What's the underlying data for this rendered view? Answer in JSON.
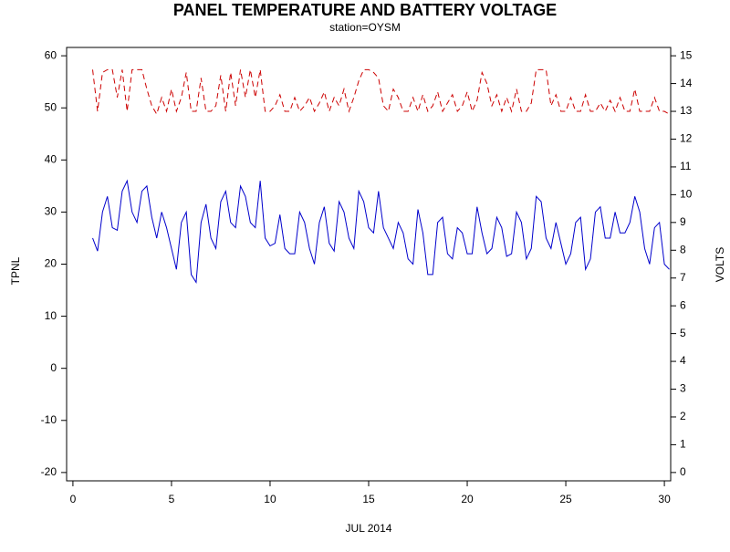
{
  "chart_data": {
    "type": "line",
    "title": "PANEL TEMPERATURE AND BATTERY VOLTAGE",
    "subtitle": "station=OYSM",
    "x_label": "JUL 2014",
    "y_label": "TPNL",
    "y2_label": "VOLTS",
    "xlim": [
      -0.32,
      30.32
    ],
    "xticks": [
      0,
      5,
      10,
      15,
      20,
      25,
      30
    ],
    "ylim": [
      -21.6,
      61.6
    ],
    "yticks": [
      -20,
      -10,
      0,
      10,
      20,
      30,
      40,
      50,
      60
    ],
    "y2lim": [
      -0.3,
      15.3
    ],
    "y2ticks": [
      0,
      1,
      2,
      3,
      4,
      5,
      6,
      7,
      8,
      9,
      10,
      11,
      12,
      13,
      14,
      15
    ],
    "x": [
      1.0,
      1.25,
      1.5,
      1.75,
      2.0,
      2.25,
      2.5,
      2.75,
      3.0,
      3.25,
      3.5,
      3.75,
      4.0,
      4.25,
      4.5,
      4.75,
      5.0,
      5.25,
      5.5,
      5.75,
      6.0,
      6.25,
      6.5,
      6.75,
      7.0,
      7.25,
      7.5,
      7.75,
      8.0,
      8.25,
      8.5,
      8.75,
      9.0,
      9.25,
      9.5,
      9.75,
      10.0,
      10.25,
      10.5,
      10.75,
      11.0,
      11.25,
      11.5,
      11.75,
      12.0,
      12.25,
      12.5,
      12.75,
      13.0,
      13.25,
      13.5,
      13.75,
      14.0,
      14.25,
      14.5,
      14.75,
      15.0,
      15.25,
      15.5,
      15.75,
      16.0,
      16.25,
      16.5,
      16.75,
      17.0,
      17.25,
      17.5,
      17.75,
      18.0,
      18.25,
      18.5,
      18.75,
      19.0,
      19.25,
      19.5,
      19.75,
      20.0,
      20.25,
      20.5,
      20.75,
      21.0,
      21.25,
      21.5,
      21.75,
      22.0,
      22.25,
      22.5,
      22.75,
      23.0,
      23.25,
      23.5,
      23.75,
      24.0,
      24.25,
      24.5,
      24.75,
      25.0,
      25.25,
      25.5,
      25.75,
      26.0,
      26.25,
      26.5,
      26.75,
      27.0,
      27.25,
      27.5,
      27.75,
      28.0,
      28.25,
      28.5,
      28.75,
      29.0,
      29.25,
      29.5,
      29.75,
      30.0,
      30.25
    ],
    "series": [
      {
        "name": "TPNL",
        "color": "#0000cc",
        "dashed": false,
        "values": [
          25,
          22.5,
          30,
          33,
          27,
          26.5,
          34,
          36,
          30,
          28,
          34,
          35,
          29,
          25,
          30,
          27,
          23,
          19,
          28,
          30,
          18,
          16.5,
          28,
          31.5,
          25,
          23,
          32,
          34,
          28,
          27,
          35,
          33,
          28,
          27,
          36,
          25,
          23.5,
          24,
          29.5,
          23,
          22,
          22,
          30,
          28,
          23,
          20,
          28,
          31,
          24,
          22.5,
          32,
          30,
          25,
          23,
          34,
          32,
          27,
          26,
          34,
          27,
          25,
          23,
          28,
          26,
          21,
          20,
          30.5,
          26,
          18,
          18,
          28,
          29,
          22,
          21,
          27,
          26,
          22,
          22,
          31,
          26,
          22,
          23,
          29,
          27,
          21.5,
          22,
          30,
          28,
          21,
          23,
          33,
          32,
          25,
          23,
          28,
          24,
          20,
          22,
          28,
          29,
          19,
          21,
          30,
          31,
          25,
          25,
          30,
          26,
          26,
          28,
          33,
          30,
          23,
          20,
          27,
          28,
          20,
          19
        ]
      },
      {
        "name": "VOLTS",
        "color": "#cc0000",
        "dashed": true,
        "axis": "y2",
        "values": [
          14.5,
          13.0,
          14.4,
          14.5,
          14.5,
          13.5,
          14.5,
          13.0,
          14.5,
          14.5,
          14.5,
          13.8,
          13.2,
          12.9,
          13.5,
          13.0,
          13.8,
          13.0,
          13.5,
          14.4,
          13.0,
          13.0,
          14.2,
          13.0,
          13.0,
          13.2,
          14.3,
          13.0,
          14.4,
          13.2,
          14.5,
          13.5,
          14.5,
          13.5,
          14.5,
          13.0,
          13.0,
          13.2,
          13.6,
          13.0,
          13.0,
          13.5,
          13.0,
          13.2,
          13.5,
          13.0,
          13.3,
          13.7,
          13.0,
          13.5,
          13.2,
          13.8,
          13.0,
          13.5,
          14.1,
          14.5,
          14.5,
          14.4,
          14.2,
          13.2,
          13.0,
          13.8,
          13.5,
          13.0,
          13.0,
          13.5,
          13.0,
          13.6,
          13.0,
          13.2,
          13.7,
          13.0,
          13.3,
          13.6,
          13.0,
          13.2,
          13.7,
          13.0,
          13.4,
          14.4,
          14.0,
          13.2,
          13.6,
          13.0,
          13.5,
          13.0,
          13.8,
          13.0,
          13.0,
          13.3,
          14.5,
          14.5,
          14.5,
          13.2,
          13.6,
          13.0,
          13.0,
          13.5,
          13.0,
          13.0,
          13.6,
          13.0,
          13.0,
          13.3,
          13.0,
          13.4,
          13.0,
          13.5,
          13.0,
          13.0,
          13.8,
          13.0,
          13.0,
          13.0,
          13.5,
          13.0,
          13.0,
          12.9
        ]
      }
    ]
  }
}
